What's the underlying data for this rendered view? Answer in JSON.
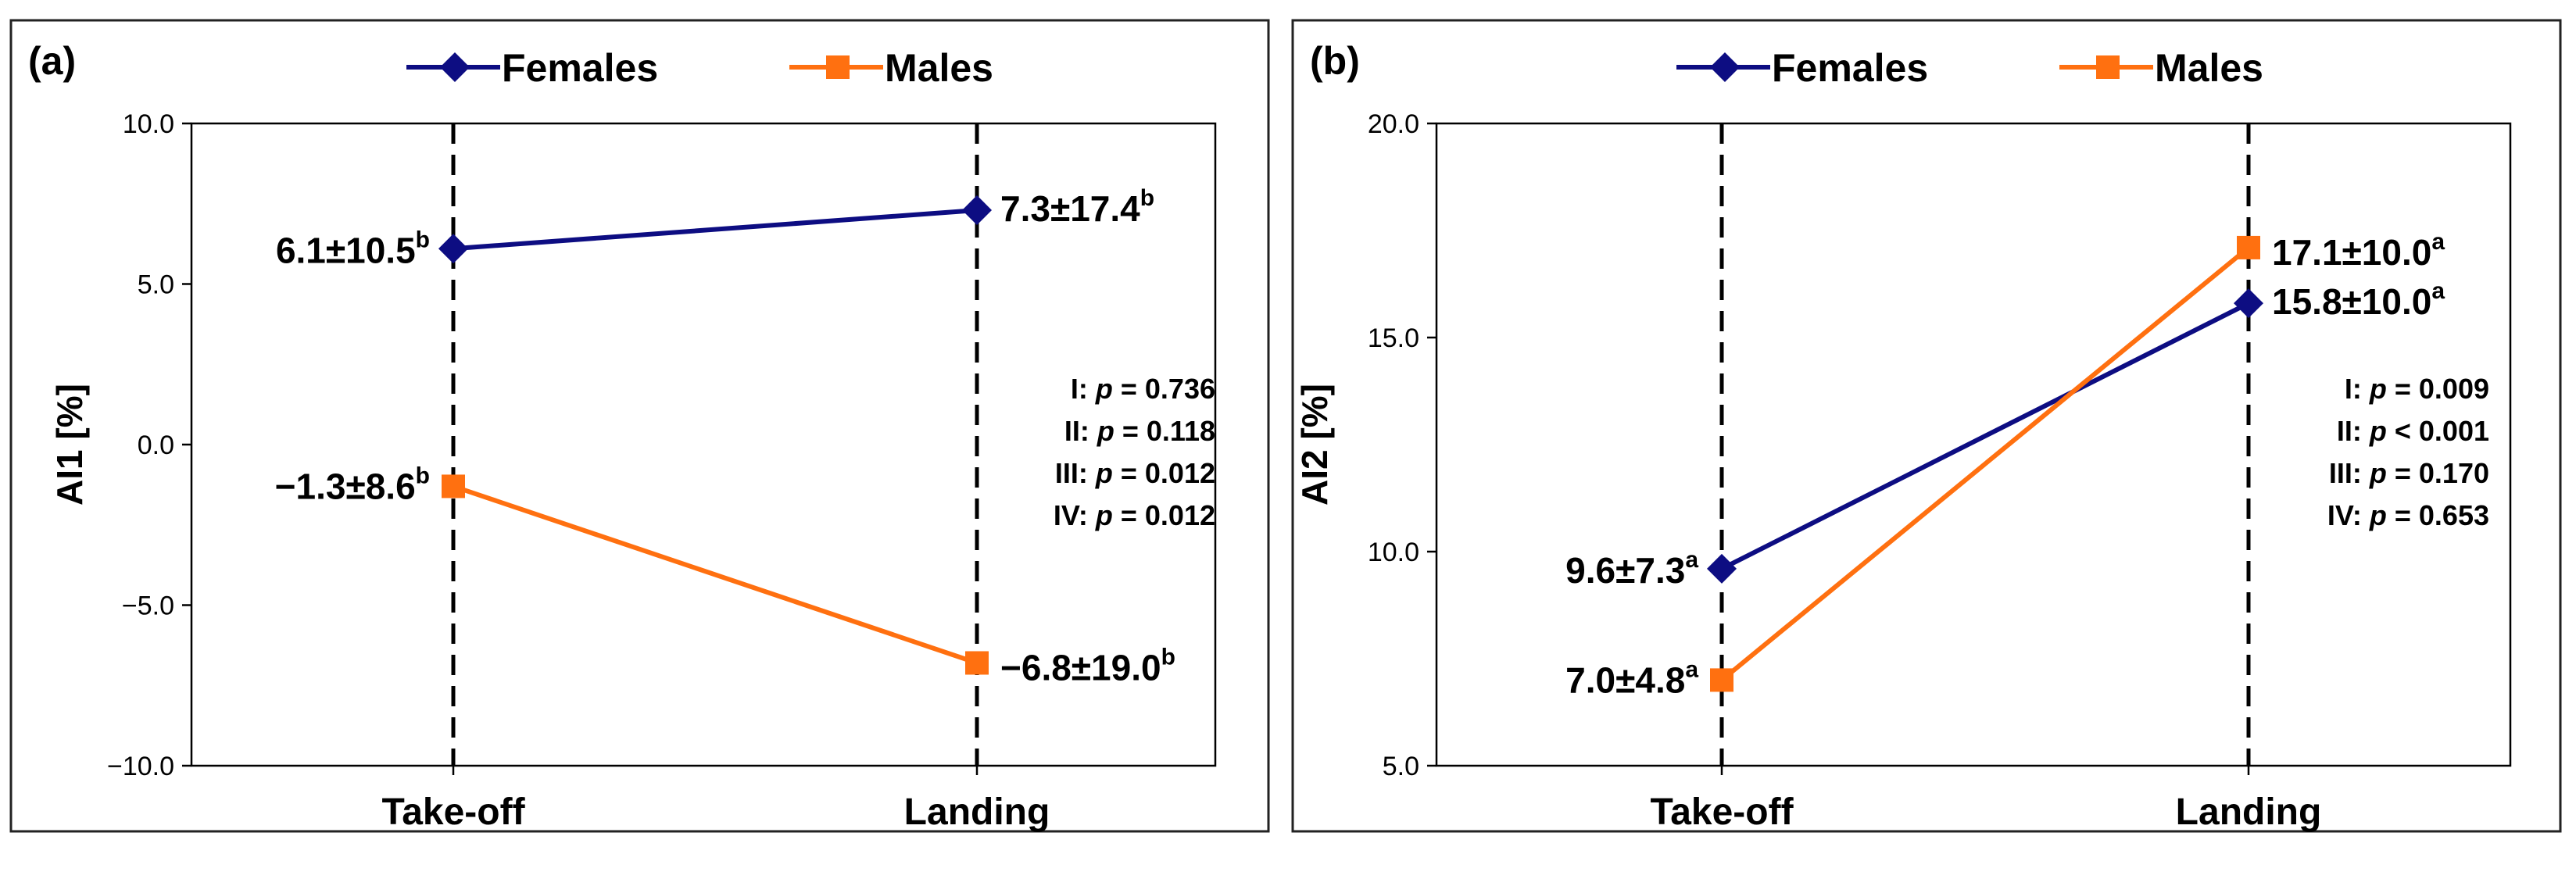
{
  "chart_data": [
    {
      "type": "line",
      "panel_label": "(a)",
      "categories": [
        "Take-off",
        "Landing"
      ],
      "ylabel": "AI1 [%]",
      "ylim": [
        -10.0,
        10.0
      ],
      "yticks": [
        "10.0",
        "5.0",
        "0.0",
        "−5.0",
        "−10.0"
      ],
      "ytick_values": [
        10.0,
        5.0,
        0.0,
        -5.0,
        -10.0
      ],
      "grid": false,
      "legend_position": "top",
      "series": [
        {
          "name": "Females",
          "color": "#0d0d82",
          "marker": "diamond",
          "values": [
            6.1,
            7.3
          ],
          "labels": [
            {
              "main": "6.1±10.5",
              "sup": "b"
            },
            {
              "main": "7.3±17.4",
              "sup": "b"
            }
          ]
        },
        {
          "name": "Males",
          "color": "#ff7010",
          "marker": "square",
          "values": [
            -1.3,
            -6.8
          ],
          "labels": [
            {
              "main": "−1.3±8.6",
              "sup": "b"
            },
            {
              "main": "−6.8±19.0",
              "sup": "b"
            }
          ]
        }
      ],
      "stats": [
        {
          "label": "I:",
          "p": "p",
          "rest": "= 0.736"
        },
        {
          "label": "II:",
          "p": "p",
          "rest": "= 0.118"
        },
        {
          "label": "III:",
          "p": "p",
          "rest": "= 0.012"
        },
        {
          "label": "IV:",
          "p": "p",
          "rest": "= 0.012"
        }
      ]
    },
    {
      "type": "line",
      "panel_label": "(b)",
      "categories": [
        "Take-off",
        "Landing"
      ],
      "ylabel": "AI2 [%]",
      "ylim": [
        5.0,
        20.0
      ],
      "yticks": [
        "20.0",
        "15.0",
        "10.0",
        "5.0"
      ],
      "ytick_values": [
        20.0,
        15.0,
        10.0,
        5.0
      ],
      "grid": false,
      "legend_position": "top",
      "series": [
        {
          "name": "Females",
          "color": "#0d0d82",
          "marker": "diamond",
          "values": [
            9.6,
            15.8
          ],
          "labels": [
            {
              "main": "9.6±7.3",
              "sup": "a"
            },
            {
              "main": "15.8±10.0",
              "sup": "a"
            }
          ]
        },
        {
          "name": "Males",
          "color": "#ff7010",
          "marker": "square",
          "values": [
            7.0,
            17.1
          ],
          "labels": [
            {
              "main": "7.0±4.8",
              "sup": "a"
            },
            {
              "main": "17.1±10.0",
              "sup": "a"
            }
          ]
        }
      ],
      "stats": [
        {
          "label": "I:",
          "p": "p",
          "rest": "= 0.009"
        },
        {
          "label": "II:",
          "p": "p",
          "rest": "< 0.001"
        },
        {
          "label": "III:",
          "p": "p",
          "rest": "= 0.170"
        },
        {
          "label": "IV:",
          "p": "p",
          "rest": "= 0.653"
        }
      ]
    }
  ]
}
